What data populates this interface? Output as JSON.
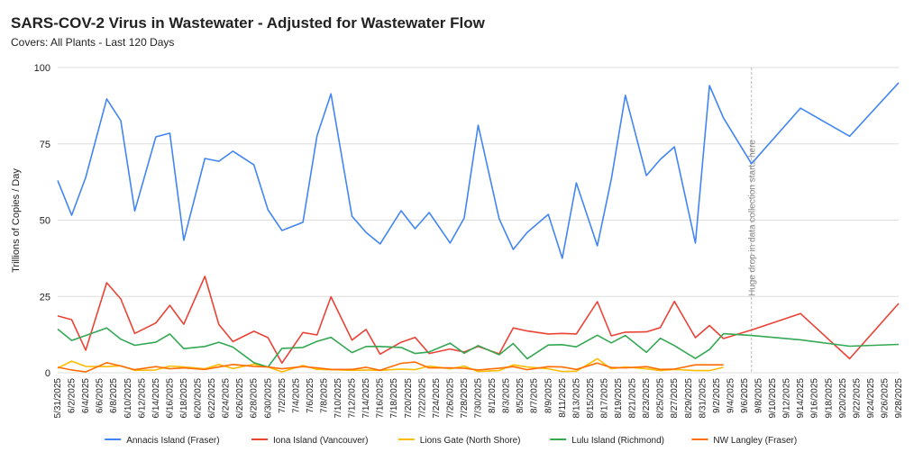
{
  "chart_data": {
    "type": "line",
    "title": "SARS-COV-2 Virus in Wastewater - Adjusted for Wastewater Flow",
    "subtitle": "Covers: All Plants - Last 120 Days",
    "y_label": "Trillions of Copies / Day",
    "annotation": "Huge drop in data collection starts here",
    "x": [
      "5/31/2025",
      "6/2/2025",
      "6/4/2025",
      "6/7/2025",
      "6/9/2025",
      "6/11/2025",
      "6/14/2025",
      "6/16/2025",
      "6/18/2025",
      "6/21/2025",
      "6/23/2025",
      "6/25/2025",
      "6/28/2025",
      "6/30/2025",
      "7/2/2025",
      "7/5/2025",
      "7/7/2025",
      "7/9/2025",
      "7/12/2025",
      "7/14/2025",
      "7/16/2025",
      "7/19/2025",
      "7/21/2025",
      "7/23/2025",
      "7/26/2025",
      "7/28/2025",
      "7/30/2025",
      "8/2/2025",
      "8/4/2025",
      "8/6/2025",
      "8/9/2025",
      "8/11/2025",
      "8/13/2025",
      "8/16/2025",
      "8/18/2025",
      "8/20/2025",
      "8/23/2025",
      "8/25/2025",
      "8/27/2025",
      "8/30/2025",
      "9/1/2025",
      "9/3/2025",
      "9/7/2025",
      "9/14/2025",
      "9/21/2025",
      "9/28/2025"
    ],
    "xlim": [
      "5/31/2025",
      "9/28/2025"
    ],
    "xticks": [
      "5/31/2025",
      "6/2/2025",
      "6/4/2025",
      "6/6/2025",
      "6/8/2025",
      "6/10/2025",
      "6/12/2025",
      "6/14/2025",
      "6/16/2025",
      "6/18/2025",
      "6/20/2025",
      "6/22/2025",
      "6/24/2025",
      "6/26/2025",
      "6/28/2025",
      "6/30/2025",
      "7/2/2025",
      "7/4/2025",
      "7/6/2025",
      "7/8/2025",
      "7/10/2025",
      "7/12/2025",
      "7/14/2025",
      "7/16/2025",
      "7/18/2025",
      "7/20/2025",
      "7/22/2025",
      "7/24/2025",
      "7/26/2025",
      "7/28/2025",
      "7/30/2025",
      "8/1/2025",
      "8/3/2025",
      "8/5/2025",
      "8/7/2025",
      "8/9/2025",
      "8/11/2025",
      "8/13/2025",
      "8/15/2025",
      "8/17/2025",
      "8/19/2025",
      "8/21/2025",
      "8/23/2025",
      "8/25/2025",
      "8/27/2025",
      "8/29/2025",
      "8/31/2025",
      "9/2/2025",
      "9/4/2025",
      "9/6/2025",
      "9/8/2025",
      "9/10/2025",
      "9/12/2025",
      "9/14/2025",
      "9/16/2025",
      "9/18/2025",
      "9/20/2025",
      "9/22/2025",
      "9/24/2025",
      "9/26/2025",
      "9/28/2025"
    ],
    "ylim": [
      0,
      100
    ],
    "yticks": [
      0,
      25,
      50,
      75,
      100
    ],
    "grid": true,
    "legend": "bottom",
    "series": [
      {
        "name": "Annacis Island (Fraser)",
        "color": "#4285f4",
        "values": [
          63,
          51.6,
          64,
          89.7,
          82.6,
          53,
          77.3,
          78.5,
          43.4,
          70.2,
          69.3,
          72.6,
          68.1,
          53.4,
          46.6,
          49.3,
          77.6,
          91.4,
          51.3,
          46,
          42.2,
          53.1,
          47.2,
          52.5,
          42.5,
          50.7,
          81.1,
          50.4,
          40.4,
          46,
          51.9,
          37.5,
          62.2,
          41.6,
          63.4,
          90.9,
          64.6,
          69.9,
          74,
          42.5,
          94.1,
          83.5,
          68.5,
          86.7,
          77.5,
          95
        ]
      },
      {
        "name": "Iona Island (Vancouver)",
        "color": "#ea4335",
        "values": [
          18.6,
          17.4,
          7.4,
          29.5,
          24.2,
          12.9,
          16.3,
          22.1,
          15.9,
          31.6,
          15.8,
          10.2,
          13.6,
          11.5,
          3.2,
          13.2,
          12.4,
          24.9,
          10.7,
          14.2,
          6.1,
          10,
          11.6,
          6.3,
          7.8,
          6.8,
          8.6,
          6.2,
          14.7,
          13.7,
          12.7,
          12.9,
          12.7,
          23.3,
          12.1,
          13.3,
          13.4,
          14.8,
          23.4,
          11.5,
          15.5,
          11.2,
          14,
          19.4,
          4.6,
          22.7
        ]
      },
      {
        "name": "Lions Gate (North Shore)",
        "color": "#fbbc04",
        "values": [
          1.5,
          3.8,
          2.1,
          2,
          2.3,
          0.8,
          0.9,
          2.2,
          1.9,
          1.3,
          2.7,
          1.4,
          2.8,
          1.9,
          0.3,
          2.4,
          1.1,
          1,
          0.8,
          0.9,
          0.8,
          1.2,
          1,
          2.2,
          1.3,
          2.2,
          0.4,
          0.7,
          2.6,
          1.9,
          1.3,
          0.4,
          0.5,
          4.6,
          1.3,
          1.9,
          1.3,
          0.7,
          1.1,
          0.7,
          0.7,
          1.8,
          null,
          null,
          null,
          null
        ]
      },
      {
        "name": "Lulu Island (Richmond)",
        "color": "#34a853",
        "values": [
          14.3,
          10.6,
          12.2,
          14.7,
          11,
          9,
          10,
          12.7,
          7.9,
          8.6,
          10,
          8.4,
          3.3,
          1.9,
          8,
          8.3,
          10.3,
          11.6,
          6.6,
          8.6,
          8.6,
          8.3,
          6.3,
          6.8,
          9.7,
          6.4,
          8.9,
          5.9,
          9.6,
          4.6,
          9.1,
          9.2,
          8.5,
          12.3,
          9.8,
          12.2,
          6.7,
          11.3,
          8.9,
          4.7,
          7.6,
          12.8,
          12.2,
          10.8,
          8.7,
          9.3
        ]
      },
      {
        "name": "NW Langley (Fraser)",
        "color": "#ff6d01",
        "values": [
          1.8,
          0.9,
          0.3,
          3.3,
          2.2,
          1,
          2,
          1.3,
          1.6,
          1.1,
          1.9,
          2.7,
          2.1,
          1.9,
          1.3,
          2,
          1.6,
          1.1,
          1.1,
          1.8,
          0.8,
          3.1,
          3.5,
          1.6,
          1.6,
          1.5,
          0.9,
          1.5,
          2,
          1,
          2,
          1.9,
          1.1,
          3.2,
          1.7,
          1.6,
          2,
          1.1,
          1.2,
          2.6,
          2.6,
          2.6,
          null,
          null,
          null,
          null
        ]
      }
    ]
  }
}
